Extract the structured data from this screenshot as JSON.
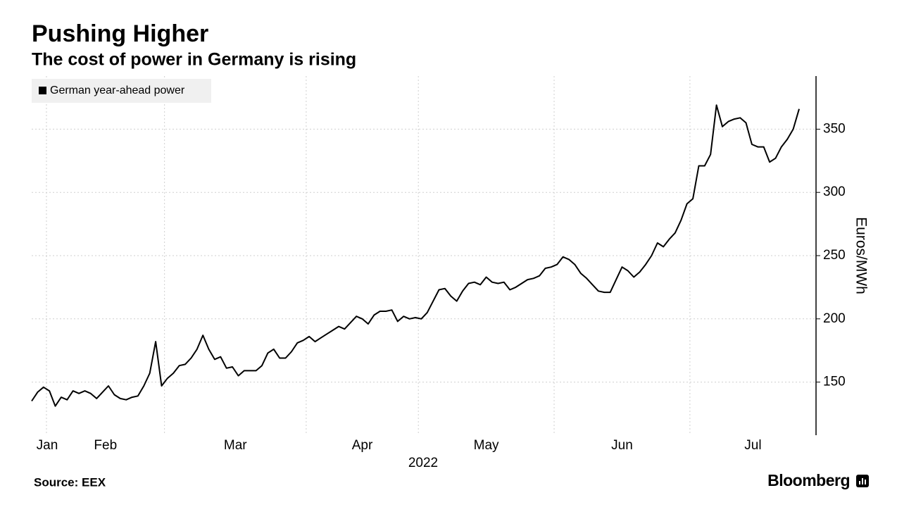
{
  "chart_data": {
    "type": "line",
    "title": "Pushing Higher",
    "subtitle": "The cost of power in Germany is rising",
    "source": "Source: EEX",
    "brand": "Bloomberg",
    "xlabel": "2022",
    "ylabel": "Euros/MWh",
    "x": [
      "2022-01",
      "2022-01",
      "2022-01",
      "2022-02",
      "2022-02",
      "2022-02",
      "2022-02",
      "2022-02",
      "2022-02",
      "2022-02",
      "2022-02",
      "2022-02",
      "2022-02",
      "2022-02",
      "2022-02",
      "2022-02",
      "2022-02",
      "2022-02",
      "2022-02",
      "2022-02",
      "2022-02",
      "2022-02",
      "2022-02",
      "2022-03",
      "2022-03",
      "2022-03",
      "2022-03",
      "2022-03",
      "2022-03",
      "2022-03",
      "2022-03",
      "2022-03",
      "2022-03",
      "2022-03",
      "2022-03",
      "2022-03",
      "2022-03",
      "2022-03",
      "2022-03",
      "2022-03",
      "2022-03",
      "2022-03",
      "2022-03",
      "2022-03",
      "2022-03",
      "2022-03",
      "2022-03",
      "2022-04",
      "2022-04",
      "2022-04",
      "2022-04",
      "2022-04",
      "2022-04",
      "2022-04",
      "2022-04",
      "2022-04",
      "2022-04",
      "2022-04",
      "2022-04",
      "2022-04",
      "2022-04",
      "2022-04",
      "2022-04",
      "2022-04",
      "2022-04",
      "2022-04",
      "2022-05",
      "2022-05",
      "2022-05",
      "2022-05",
      "2022-05",
      "2022-05",
      "2022-05",
      "2022-05",
      "2022-05",
      "2022-05",
      "2022-05",
      "2022-05",
      "2022-05",
      "2022-05",
      "2022-05",
      "2022-05",
      "2022-05",
      "2022-05",
      "2022-05",
      "2022-05",
      "2022-05",
      "2022-05",
      "2022-05",
      "2022-06",
      "2022-06",
      "2022-06",
      "2022-06",
      "2022-06",
      "2022-06",
      "2022-06",
      "2022-06",
      "2022-06",
      "2022-06",
      "2022-06",
      "2022-06",
      "2022-06",
      "2022-06",
      "2022-06",
      "2022-06",
      "2022-06",
      "2022-06",
      "2022-06",
      "2022-06",
      "2022-06",
      "2022-06",
      "2022-06",
      "2022-07",
      "2022-07",
      "2022-07",
      "2022-07",
      "2022-07",
      "2022-07",
      "2022-07",
      "2022-07",
      "2022-07",
      "2022-07",
      "2022-07",
      "2022-07",
      "2022-07",
      "2022-07",
      "2022-07",
      "2022-07",
      "2022-07",
      "2022-07",
      "2022-07"
    ],
    "series": [
      {
        "name": "German year-ahead power",
        "color": "#000000",
        "values": [
          135,
          142,
          146,
          143,
          131,
          138,
          136,
          143,
          141,
          143,
          141,
          137,
          142,
          147,
          140,
          137,
          136,
          138,
          139,
          147,
          157,
          182,
          147,
          153,
          157,
          163,
          164,
          169,
          176,
          187,
          176,
          168,
          170,
          161,
          162,
          155,
          159,
          159,
          159,
          163,
          173,
          176,
          169,
          169,
          174,
          181,
          183,
          186,
          182,
          185,
          188,
          191,
          194,
          192,
          197,
          202,
          200,
          196,
          203,
          206,
          206,
          207,
          198,
          202,
          200,
          201,
          200,
          205,
          214,
          223,
          224,
          218,
          214,
          222,
          228,
          229,
          227,
          233,
          229,
          228,
          229,
          223,
          225,
          228,
          231,
          232,
          234,
          240,
          241,
          243,
          249,
          247,
          243,
          236,
          232,
          227,
          222,
          221,
          221,
          231,
          241,
          238,
          233,
          237,
          243,
          250,
          260,
          257,
          263,
          268,
          278,
          291,
          295,
          321,
          321,
          330,
          369,
          352,
          356,
          358,
          359,
          355,
          338,
          336,
          336,
          324,
          327,
          336,
          342,
          350,
          366
        ]
      }
    ],
    "xticks": [
      {
        "value": "2022-01",
        "label": "Jan"
      },
      {
        "value": "2022-02",
        "label": "Feb"
      },
      {
        "value": "2022-03",
        "label": "Mar"
      },
      {
        "value": "2022-04",
        "label": "Apr"
      },
      {
        "value": "2022-05",
        "label": "May"
      },
      {
        "value": "2022-06",
        "label": "Jun"
      },
      {
        "value": "2022-07",
        "label": "Jul"
      }
    ],
    "ylim": [
      108,
      392
    ],
    "yticks": [
      150,
      200,
      250,
      300,
      350
    ],
    "grid": true,
    "legend": "top-left"
  }
}
